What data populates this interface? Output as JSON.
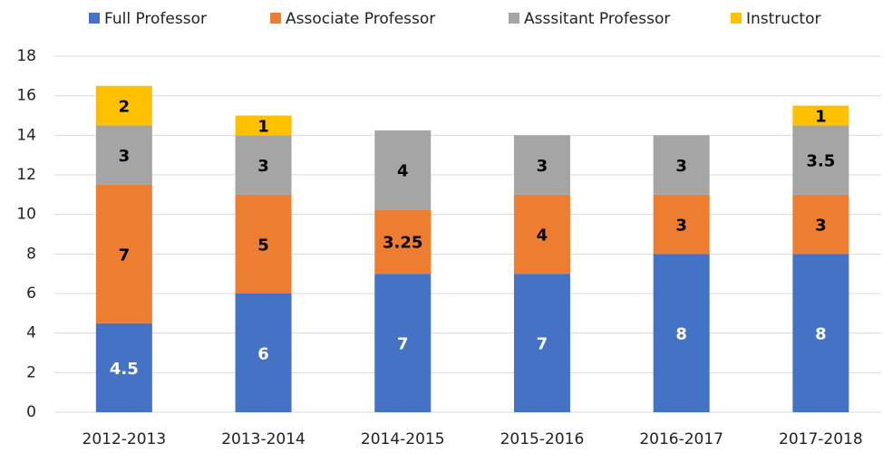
{
  "chart_data": {
    "type": "stacked_bar",
    "categories": [
      "2012-2013",
      "2013-2014",
      "2014-2015",
      "2015-2016",
      "2016-2017",
      "2017-2018"
    ],
    "series": [
      {
        "name": "Full  Professor",
        "color": "#4472c4",
        "label_color": "#ffffff",
        "values": [
          4.5,
          6,
          7,
          7,
          8,
          8
        ]
      },
      {
        "name": "Associate Professor",
        "color": "#ed7d31",
        "label_color": "#000000",
        "values": [
          7,
          5,
          3.25,
          4,
          3,
          3
        ]
      },
      {
        "name": "Asssitant Professor",
        "color": "#a5a5a5",
        "label_color": "#000000",
        "values": [
          3,
          3,
          4,
          3,
          3,
          3.5
        ]
      },
      {
        "name": "Instructor",
        "color": "#ffc000",
        "label_color": "#000000",
        "values": [
          2,
          1,
          null,
          null,
          null,
          1
        ]
      }
    ],
    "ylim": [
      0,
      18
    ],
    "yticks": [
      0,
      2,
      4,
      6,
      8,
      10,
      12,
      14,
      16,
      18
    ],
    "grid": true,
    "legend": "top"
  }
}
